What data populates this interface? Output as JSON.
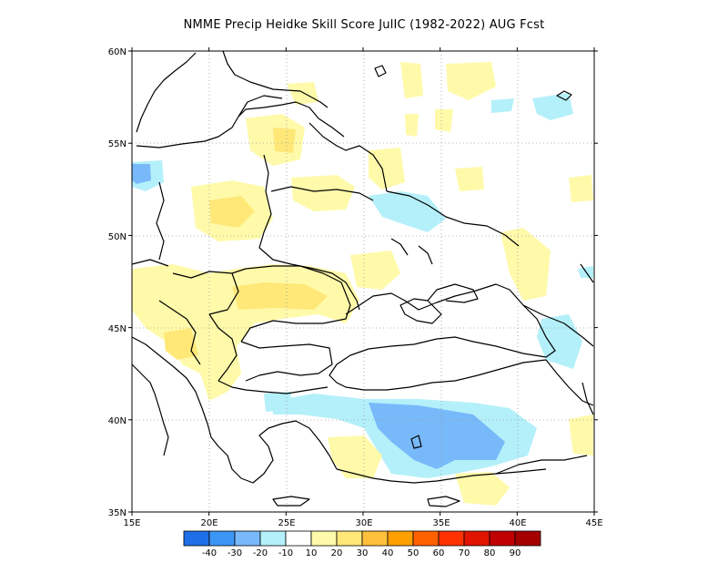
{
  "title": "NMME Precip Heidke Skill Score JulIC (1982-2022) AUG Fcst",
  "axes": {
    "lon_ticks": [
      "15E",
      "20E",
      "25E",
      "30E",
      "35E",
      "40E",
      "45E"
    ],
    "lat_ticks": [
      "60N",
      "55N",
      "50N",
      "45N",
      "40N",
      "35N"
    ],
    "lon_range": [
      15,
      45
    ],
    "lat_range": [
      35,
      60
    ],
    "grid": "dotted"
  },
  "colorbar": {
    "labels": [
      "-40",
      "-30",
      "-20",
      "-10",
      "10",
      "20",
      "30",
      "40",
      "50",
      "60",
      "70",
      "80",
      "90"
    ],
    "colors": [
      "#1e6ee8",
      "#3c96f5",
      "#78b9fa",
      "#b4f0fa",
      "#ffffff",
      "#fffaaa",
      "#ffe878",
      "#ffc03c",
      "#ffa000",
      "#ff6000",
      "#ff3200",
      "#e11400",
      "#c00000",
      "#a50000"
    ]
  },
  "colors": {
    "land_line": "#000000",
    "grid_line": "#9a9a9a"
  }
}
